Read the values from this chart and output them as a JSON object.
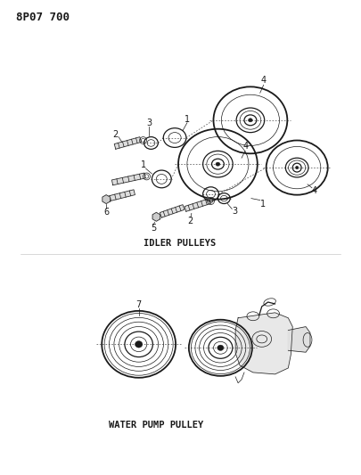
{
  "title": "8P07 700",
  "background_color": "#ffffff",
  "text_color": "#1a1a1a",
  "label1": "IDLER PULLEYS",
  "label2": "WATER PUMP PULLEY",
  "fig_width": 4.05,
  "fig_height": 5.33,
  "dpi": 100
}
